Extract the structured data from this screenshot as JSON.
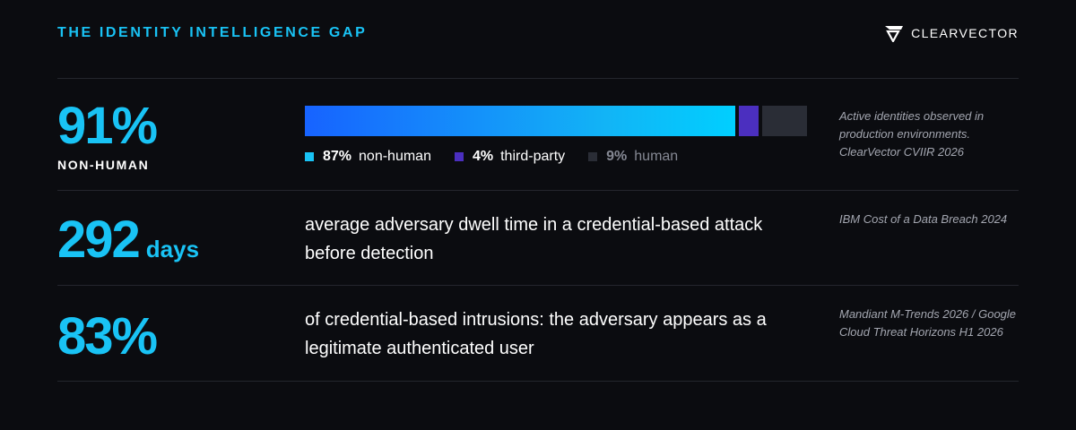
{
  "header": {
    "title": "THE IDENTITY INTELLIGENCE GAP",
    "brand": "CLEARVECTOR",
    "brand_icon": "clearvector-logo-icon"
  },
  "colors": {
    "accent": "#19c3f5",
    "non_human": "#19c3f5",
    "third_party": "#4b2fbf",
    "human": "#2a2d36",
    "background": "#0b0c10"
  },
  "stats": [
    {
      "value": "91%",
      "sub": "NON-HUMAN",
      "breakdown": [
        {
          "key": "non_human",
          "percent": 87,
          "value_text": "87%",
          "label": "non-human"
        },
        {
          "key": "third_party",
          "percent": 4,
          "value_text": "4%",
          "label": "third-party"
        },
        {
          "key": "human",
          "percent": 9,
          "value_text": "9%",
          "label": "human"
        }
      ],
      "source": "Active identities observed in production environments. ClearVector CVIIR 2026"
    },
    {
      "value": "292",
      "unit": "days",
      "description": "average adversary dwell time in a credential-based attack before detection",
      "source": "IBM Cost of a Data Breach 2024"
    },
    {
      "value": "83%",
      "description": "of credential-based intrusions: the adversary appears as a legitimate authenticated user",
      "source": "Mandiant M-Trends 2026 / Google Cloud Threat Horizons H1 2026"
    }
  ]
}
